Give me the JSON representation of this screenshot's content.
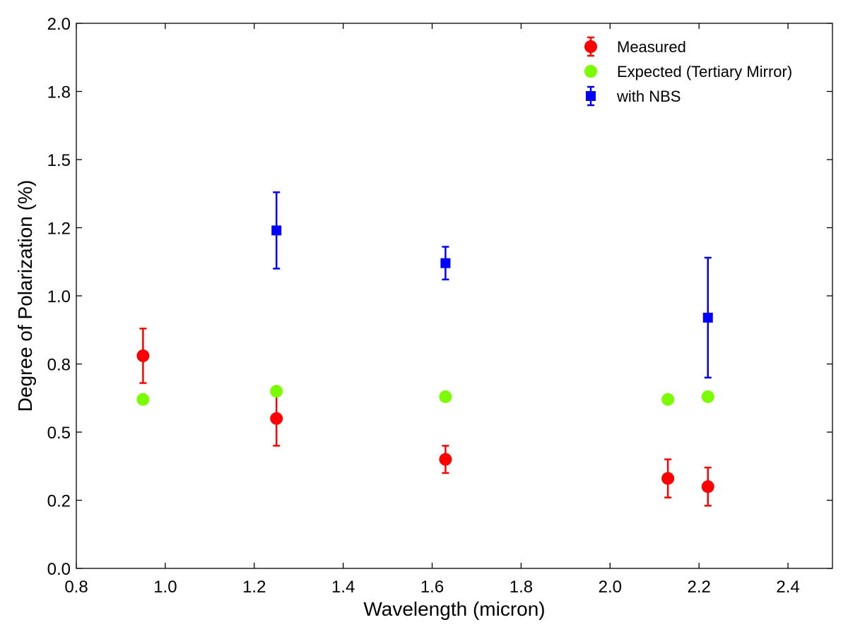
{
  "chart_data": {
    "type": "scatter",
    "title": "",
    "xlabel": "Wavelength (micron)",
    "ylabel": "Degree of Polarization (%)",
    "xlim": [
      0.8,
      2.5
    ],
    "ylim": [
      0.0,
      2.0
    ],
    "xticks": [
      0.8,
      1.0,
      1.2,
      1.4,
      1.6,
      1.8,
      2.0,
      2.2,
      2.4
    ],
    "xtick_labels": [
      "0.8",
      "1.0",
      "1.2",
      "1.4",
      "1.6",
      "1.8",
      "2.0",
      "2.2",
      "2.4"
    ],
    "yticks": [
      0.0,
      0.25,
      0.5,
      0.75,
      1.0,
      1.25,
      1.5,
      1.75,
      2.0
    ],
    "ytick_labels": [
      "0.0",
      "0.2",
      "0.5",
      "0.8",
      "1.0",
      "1.2",
      "1.5",
      "1.8",
      "2.0"
    ],
    "grid": false,
    "legend_position": "top-right",
    "series": [
      {
        "name": "Measured",
        "marker": "circle",
        "color": "#ff0000",
        "x": [
          0.95,
          1.25,
          1.63,
          2.13,
          2.22
        ],
        "y": [
          0.78,
          0.55,
          0.4,
          0.33,
          0.3
        ],
        "yerr": [
          0.1,
          0.1,
          0.05,
          0.07,
          0.07
        ]
      },
      {
        "name": "Expected (Tertiary Mirror)",
        "marker": "circle",
        "color": "#7cfc00",
        "x": [
          0.95,
          1.25,
          1.63,
          2.13,
          2.22
        ],
        "y": [
          0.62,
          0.65,
          0.63,
          0.62,
          0.63
        ]
      },
      {
        "name": "with NBS",
        "marker": "square",
        "color": "#0000ff",
        "x": [
          1.25,
          1.63,
          2.22
        ],
        "y": [
          1.24,
          1.12,
          0.92
        ],
        "yerr": [
          0.14,
          0.06,
          0.22
        ]
      }
    ]
  }
}
